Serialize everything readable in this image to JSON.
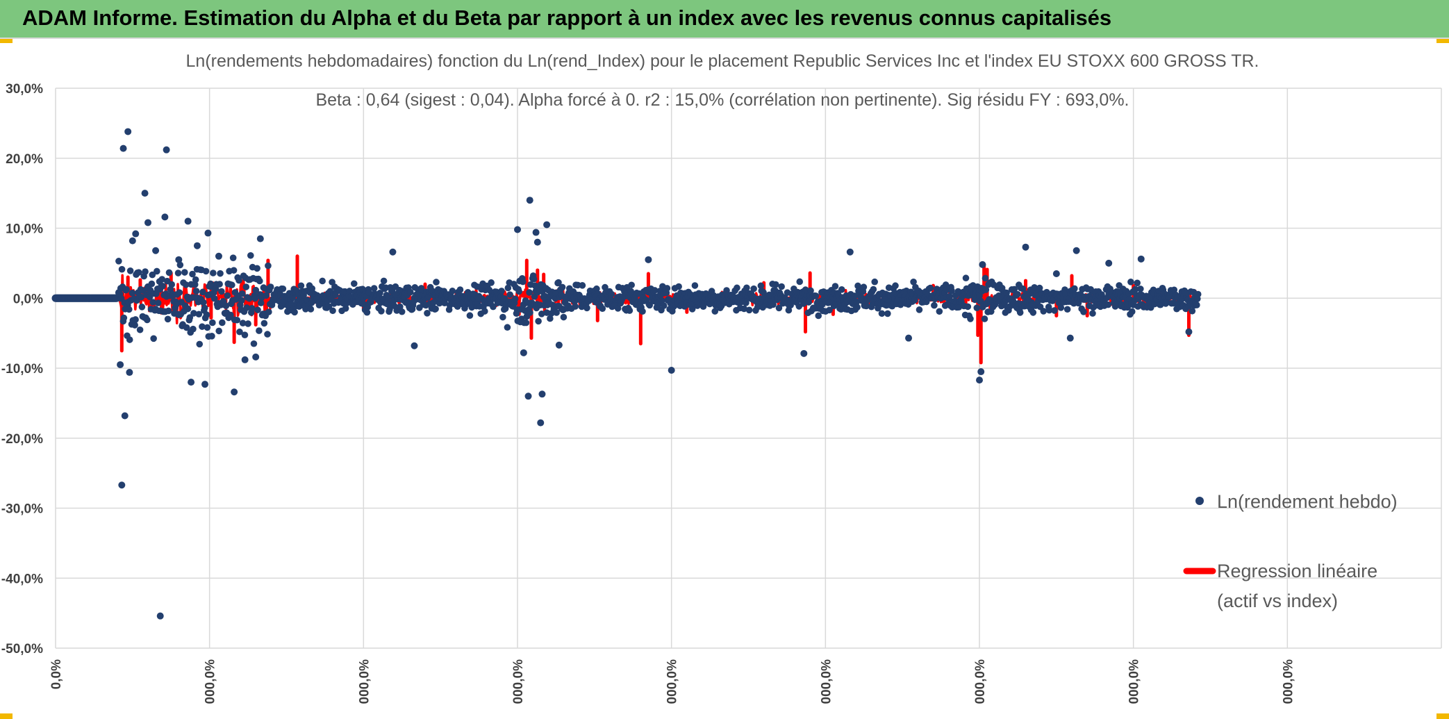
{
  "header": {
    "title": "ADAM Informe. Estimation du Alpha et du Beta par rapport à un index avec les revenus connus capitalisés",
    "background_color": "#7dc67e",
    "corner_color": "#f2b800"
  },
  "chart_data": {
    "type": "scatter",
    "title_lines": [
      "Ln(rendements hebdomadaires) fonction du Ln(rend_Index) pour le placement Republic Services Inc et l'index EU STOXX 600 GROSS TR.",
      "Beta : 0,64 (sigest : 0,04). Alpha forcé à 0. r2 : 15,0% (corrélation non pertinente). Sig résidu FY : 693,0%."
    ],
    "stats": {
      "beta": 0.64,
      "sigest": 0.04,
      "alpha": 0,
      "r2_pct": 15.0,
      "sig_residu_fy_pct": 693.0
    },
    "y_axis": {
      "min": -50,
      "max": 30,
      "step": 10,
      "unit": "%",
      "tick_labels": [
        "30,0%",
        "20,0%",
        "10,0%",
        "0,0%",
        "-10,0%",
        "-20,0%",
        "-30,0%",
        "-40,0%",
        "-50,0%"
      ]
    },
    "x_axis": {
      "tick_labels": [
        "0,0%",
        "000,0%",
        "000,0%",
        "000,0%",
        "000,0%",
        "000,0%",
        "000,0%",
        "000,0%",
        "000,0%"
      ],
      "label_orientation": "vertical"
    },
    "gridlines": true,
    "legend": {
      "placement": "bottom-right",
      "entries": [
        {
          "name": "Ln(rendement hebdo)",
          "marker": "dot",
          "color": "#233f6e"
        },
        {
          "name_lines": [
            "Regression linéaire",
            "(actif vs index)"
          ],
          "marker": "line",
          "color": "#ff0000"
        }
      ]
    },
    "series": [
      {
        "name": "Ln(rendement hebdo)",
        "color": "#233f6e",
        "flat_zero_segment": {
          "x_start": 0,
          "x_end": 0.4,
          "y": 0
        },
        "outliers": [
          {
            "x": 0.41,
            "y": 0.8
          },
          {
            "x": 0.42,
            "y": -9.5
          },
          {
            "x": 0.43,
            "y": -26.7
          },
          {
            "x": 0.44,
            "y": 21.4
          },
          {
            "x": 0.45,
            "y": -16.8
          },
          {
            "x": 0.47,
            "y": 23.8
          },
          {
            "x": 0.48,
            "y": -10.6
          },
          {
            "x": 0.5,
            "y": 8.2
          },
          {
            "x": 0.52,
            "y": 9.2
          },
          {
            "x": 0.58,
            "y": 15.0
          },
          {
            "x": 0.6,
            "y": 10.8
          },
          {
            "x": 0.65,
            "y": 6.8
          },
          {
            "x": 0.68,
            "y": -45.4
          },
          {
            "x": 0.72,
            "y": 21.2
          },
          {
            "x": 0.71,
            "y": 11.6
          },
          {
            "x": 0.8,
            "y": 5.5
          },
          {
            "x": 0.86,
            "y": 11.0
          },
          {
            "x": 0.88,
            "y": -12.0
          },
          {
            "x": 0.92,
            "y": 7.5
          },
          {
            "x": 0.97,
            "y": -12.3
          },
          {
            "x": 0.99,
            "y": 9.3
          },
          {
            "x": 1.06,
            "y": 6.0
          },
          {
            "x": 1.16,
            "y": -13.4
          },
          {
            "x": 1.23,
            "y": -8.8
          },
          {
            "x": 1.3,
            "y": -8.4
          },
          {
            "x": 1.33,
            "y": 8.5
          },
          {
            "x": 2.19,
            "y": 6.6
          },
          {
            "x": 2.33,
            "y": -6.8
          },
          {
            "x": 3.0,
            "y": 9.8
          },
          {
            "x": 3.07,
            "y": -14.0
          },
          {
            "x": 3.08,
            "y": 14.0
          },
          {
            "x": 3.12,
            "y": 9.4
          },
          {
            "x": 3.15,
            "y": -17.8
          },
          {
            "x": 3.16,
            "y": -13.7
          },
          {
            "x": 3.19,
            "y": 10.5
          },
          {
            "x": 3.27,
            "y": -6.7
          },
          {
            "x": 3.04,
            "y": -7.8
          },
          {
            "x": 3.13,
            "y": 8.0
          },
          {
            "x": 4.0,
            "y": -10.3
          },
          {
            "x": 3.85,
            "y": 5.5
          },
          {
            "x": 4.86,
            "y": -7.9
          },
          {
            "x": 5.16,
            "y": 6.6
          },
          {
            "x": 5.54,
            "y": -5.7
          },
          {
            "x": 6.0,
            "y": -11.7
          },
          {
            "x": 6.01,
            "y": -10.5
          },
          {
            "x": 6.02,
            "y": 4.8
          },
          {
            "x": 6.3,
            "y": 7.3
          },
          {
            "x": 6.5,
            "y": 3.5
          },
          {
            "x": 6.63,
            "y": 6.8
          },
          {
            "x": 6.59,
            "y": -5.7
          },
          {
            "x": 6.84,
            "y": 5.0
          },
          {
            "x": 7.05,
            "y": 5.6
          },
          {
            "x": 7.36,
            "y": -4.8
          }
        ]
      },
      {
        "name": "Regression linéaire (actif vs index)",
        "color": "#ff0000",
        "spikes": [
          {
            "x": 0.43,
            "y": -7.5
          },
          {
            "x": 0.47,
            "y": 3.0
          },
          {
            "x": 0.55,
            "y": 2.6
          },
          {
            "x": 0.75,
            "y": 3.6
          },
          {
            "x": 1.01,
            "y": -2.8
          },
          {
            "x": 1.16,
            "y": -6.3
          },
          {
            "x": 1.3,
            "y": -3.8
          },
          {
            "x": 1.38,
            "y": 5.4
          },
          {
            "x": 1.57,
            "y": 6.0
          },
          {
            "x": 2.0,
            "y": -1.5
          },
          {
            "x": 2.4,
            "y": 2.0
          },
          {
            "x": 3.01,
            "y": -2.3
          },
          {
            "x": 3.06,
            "y": 5.4
          },
          {
            "x": 3.09,
            "y": -5.7
          },
          {
            "x": 3.13,
            "y": 4.0
          },
          {
            "x": 3.17,
            "y": 3.4
          },
          {
            "x": 3.52,
            "y": -3.2
          },
          {
            "x": 3.8,
            "y": -6.5
          },
          {
            "x": 3.85,
            "y": 3.5
          },
          {
            "x": 4.1,
            "y": -2.0
          },
          {
            "x": 4.6,
            "y": 2.2
          },
          {
            "x": 4.87,
            "y": -4.8
          },
          {
            "x": 4.9,
            "y": 3.6
          },
          {
            "x": 5.05,
            "y": -2.3
          },
          {
            "x": 5.7,
            "y": 1.8
          },
          {
            "x": 5.99,
            "y": -5.3
          },
          {
            "x": 6.01,
            "y": -9.2
          },
          {
            "x": 6.03,
            "y": 4.8
          },
          {
            "x": 6.05,
            "y": 4.1
          },
          {
            "x": 6.3,
            "y": 2.5
          },
          {
            "x": 6.5,
            "y": -2.5
          },
          {
            "x": 6.6,
            "y": 3.2
          },
          {
            "x": 6.7,
            "y": -2.5
          },
          {
            "x": 7.0,
            "y": 1.8
          },
          {
            "x": 7.36,
            "y": -5.3
          },
          {
            "x": 7.4,
            "y": 1.0
          }
        ]
      }
    ]
  }
}
